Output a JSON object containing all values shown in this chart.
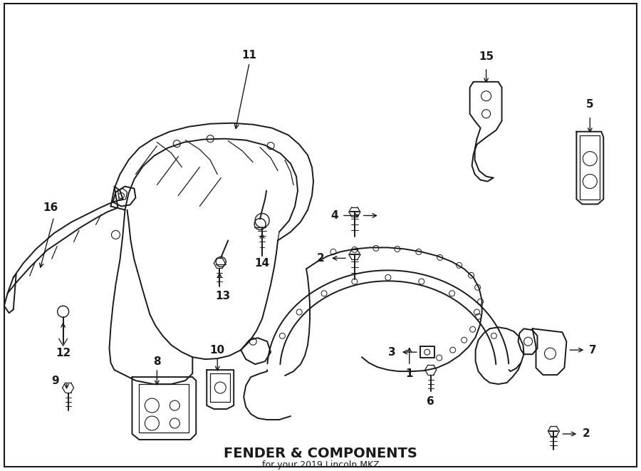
{
  "title": "FENDER & COMPONENTS",
  "subtitle": "for your 2019 Lincoln MKZ",
  "bg": "#ffffff",
  "lc": "#1a1a1a",
  "figure_width": 9.0,
  "figure_height": 6.61,
  "dpi": 100
}
